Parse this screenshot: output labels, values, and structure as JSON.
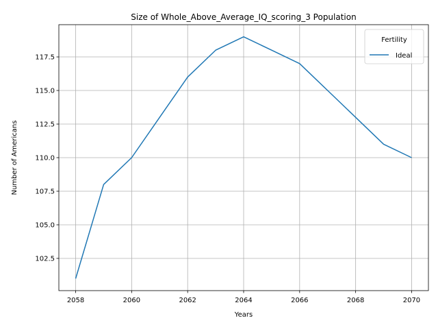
{
  "chart_data": {
    "type": "line",
    "title": "Size of Whole_Above_Average_IQ_scoring_3 Population",
    "xlabel": "Years",
    "ylabel": "Number of Americans",
    "xlim": [
      2057.4,
      2070.6
    ],
    "ylim": [
      100.1,
      119.9
    ],
    "xticks": [
      2058,
      2060,
      2062,
      2064,
      2066,
      2068,
      2070
    ],
    "yticks": [
      102.5,
      105.0,
      107.5,
      110.0,
      112.5,
      115.0,
      117.5
    ],
    "ytick_labels": [
      "102.5",
      "105.0",
      "107.5",
      "110.0",
      "112.5",
      "115.0",
      "117.5"
    ],
    "grid": true,
    "legend": {
      "title": "Fertility",
      "position": "top-right"
    },
    "series": [
      {
        "name": "Ideal",
        "color": "#1f77b4",
        "x": [
          2058,
          2059,
          2060,
          2061,
          2062,
          2063,
          2064,
          2065,
          2066,
          2067,
          2068,
          2069,
          2070
        ],
        "y": [
          101,
          108,
          110,
          113,
          116,
          118,
          119,
          118,
          117,
          115,
          113,
          111,
          110
        ]
      }
    ]
  }
}
